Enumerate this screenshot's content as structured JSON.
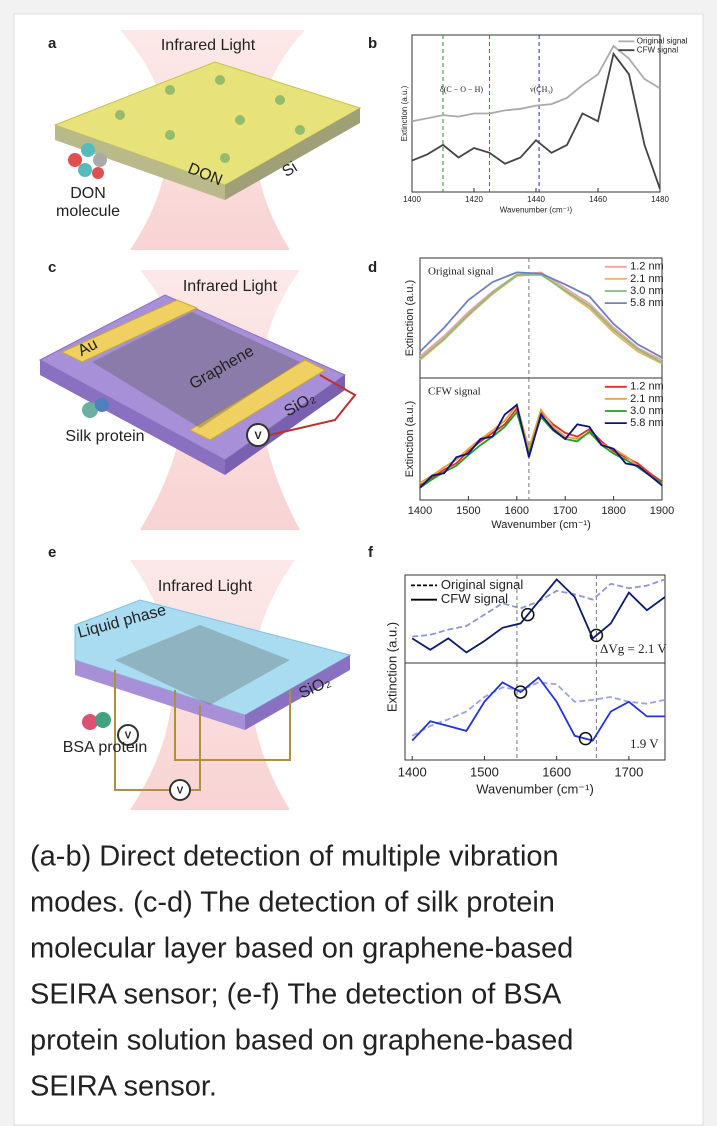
{
  "panel_labels": [
    "a",
    "b",
    "c",
    "d",
    "e",
    "f"
  ],
  "illustrations": {
    "a": {
      "light": "Infrared Light",
      "layer": "DON",
      "substrate": "Si",
      "molecule_lines": [
        "DON",
        "molecule"
      ]
    },
    "c": {
      "light": "Infrared Light",
      "electrode": "Au",
      "layer": "Graphene",
      "substrate": "SiO₂",
      "molecule": "Silk protein",
      "meter": "V"
    },
    "e": {
      "light": "Infrared Light",
      "liquid": "Liquid phase",
      "substrate": "SiO₂",
      "molecule": "BSA protein",
      "meters": [
        "V",
        "V"
      ]
    }
  },
  "chart_data": [
    {
      "type": "line",
      "xlabel": "Wavenumber (cm⁻¹)",
      "ylabel": "Extinction (a.u.)",
      "x": [
        1400,
        1405,
        1410,
        1415,
        1420,
        1425,
        1430,
        1435,
        1440,
        1445,
        1450,
        1455,
        1460,
        1465,
        1470,
        1475,
        1480
      ],
      "xlim": [
        1400,
        1480
      ],
      "ylim": [
        0,
        1
      ],
      "xticks": [
        1400,
        1420,
        1440,
        1460,
        1480
      ],
      "legend": "upper right",
      "series": [
        {
          "name": "Original signal",
          "color": "#aaaaaa",
          "values": [
            0.45,
            0.47,
            0.49,
            0.48,
            0.5,
            0.5,
            0.52,
            0.53,
            0.55,
            0.56,
            0.6,
            0.68,
            0.75,
            0.93,
            0.85,
            0.72,
            0.66
          ]
        },
        {
          "name": "CFW signal",
          "color": "#444444",
          "values": [
            0.2,
            0.24,
            0.3,
            0.22,
            0.28,
            0.25,
            0.18,
            0.22,
            0.33,
            0.25,
            0.3,
            0.5,
            0.45,
            0.88,
            0.75,
            0.3,
            0.02
          ]
        }
      ],
      "vlines": [
        {
          "x": 1410,
          "color": "#2e8b2e"
        },
        {
          "x": 1425,
          "color": "#2e8b2e"
        },
        {
          "x": 1441,
          "color": "#2233aa"
        }
      ],
      "annotations": [
        "δ(C − O − H)",
        "ν(CH₃)"
      ]
    },
    {
      "type": "line",
      "ylabel": "Extinction (a.u.)",
      "x": [
        1400,
        1450,
        1500,
        1550,
        1600,
        1650,
        1700,
        1750,
        1800,
        1850,
        1900
      ],
      "xlim": [
        1400,
        1900
      ],
      "ylim": [
        0,
        1
      ],
      "legend": "upper right",
      "series": [
        {
          "name": "1.2 nm",
          "color": "#f4a0a0",
          "values": [
            0.18,
            0.35,
            0.55,
            0.72,
            0.86,
            0.88,
            0.75,
            0.62,
            0.42,
            0.25,
            0.15
          ]
        },
        {
          "name": "2.1 nm",
          "color": "#f0b060",
          "values": [
            0.15,
            0.32,
            0.52,
            0.7,
            0.85,
            0.87,
            0.72,
            0.58,
            0.38,
            0.22,
            0.12
          ]
        },
        {
          "name": "3.0 nm",
          "color": "#80c080",
          "values": [
            0.16,
            0.33,
            0.53,
            0.71,
            0.86,
            0.86,
            0.73,
            0.6,
            0.4,
            0.24,
            0.13
          ]
        },
        {
          "name": "5.8 nm",
          "color": "#7080c0",
          "values": [
            0.22,
            0.42,
            0.65,
            0.8,
            0.88,
            0.87,
            0.78,
            0.68,
            0.45,
            0.28,
            0.17
          ]
        }
      ],
      "vlines": [
        {
          "x": 1625,
          "color": "#777777"
        }
      ],
      "annotations": [
        "Original signal"
      ]
    },
    {
      "type": "line",
      "xlabel": "Wavenumber (cm⁻¹)",
      "ylabel": "Extinction (a.u.)",
      "x": [
        1400,
        1425,
        1450,
        1475,
        1500,
        1525,
        1550,
        1575,
        1600,
        1625,
        1650,
        1675,
        1700,
        1725,
        1750,
        1775,
        1800,
        1825,
        1850,
        1875,
        1900
      ],
      "xlim": [
        1400,
        1900
      ],
      "ylim": [
        0,
        1
      ],
      "xticks": [
        1400,
        1500,
        1600,
        1700,
        1800,
        1900
      ],
      "legend": "upper right",
      "series": [
        {
          "name": "1.2 nm",
          "color": "#e03030",
          "values": [
            0.12,
            0.18,
            0.25,
            0.3,
            0.4,
            0.48,
            0.55,
            0.62,
            0.75,
            0.4,
            0.72,
            0.62,
            0.55,
            0.52,
            0.58,
            0.48,
            0.4,
            0.35,
            0.3,
            0.22,
            0.15
          ]
        },
        {
          "name": "2.1 nm",
          "color": "#e8a040",
          "values": [
            0.14,
            0.2,
            0.27,
            0.33,
            0.42,
            0.5,
            0.57,
            0.65,
            0.78,
            0.42,
            0.74,
            0.6,
            0.52,
            0.5,
            0.55,
            0.46,
            0.42,
            0.36,
            0.28,
            0.2,
            0.13
          ]
        },
        {
          "name": "3.0 nm",
          "color": "#20a020",
          "values": [
            0.1,
            0.17,
            0.23,
            0.28,
            0.37,
            0.45,
            0.52,
            0.6,
            0.72,
            0.38,
            0.68,
            0.57,
            0.5,
            0.48,
            0.56,
            0.45,
            0.38,
            0.33,
            0.27,
            0.2,
            0.14
          ]
        },
        {
          "name": "5.8 nm",
          "color": "#101080",
          "values": [
            0.1,
            0.2,
            0.22,
            0.35,
            0.38,
            0.5,
            0.52,
            0.7,
            0.78,
            0.35,
            0.7,
            0.58,
            0.5,
            0.62,
            0.6,
            0.45,
            0.42,
            0.3,
            0.28,
            0.2,
            0.12
          ]
        }
      ],
      "vlines": [
        {
          "x": 1625,
          "color": "#777777"
        }
      ],
      "annotations": [
        "CFW signal"
      ]
    },
    {
      "type": "line",
      "ylabel": "Extinction (a.u.)",
      "x": [
        1400,
        1425,
        1450,
        1475,
        1500,
        1525,
        1550,
        1575,
        1600,
        1625,
        1650,
        1675,
        1700,
        1725,
        1750
      ],
      "xlim": [
        1390,
        1750
      ],
      "ylim": [
        0,
        1
      ],
      "legend_entries": [
        {
          "name": "Original signal",
          "color": "#000000",
          "dashed": true
        },
        {
          "name": "CFW signal",
          "color": "#000000"
        }
      ],
      "series": [
        {
          "color": "#8f95d6",
          "dashed": true,
          "values": [
            0.3,
            0.32,
            0.38,
            0.42,
            0.55,
            0.68,
            0.62,
            0.7,
            0.82,
            0.78,
            0.72,
            0.9,
            0.85,
            0.88,
            0.95
          ]
        },
        {
          "color": "#0d1a6e",
          "values": [
            0.28,
            0.15,
            0.28,
            0.12,
            0.25,
            0.4,
            0.45,
            0.7,
            0.95,
            0.75,
            0.28,
            0.45,
            0.8,
            0.6,
            0.75
          ]
        }
      ],
      "vlines": [
        {
          "x": 1545,
          "color": "#777777"
        },
        {
          "x": 1655,
          "color": "#777777"
        }
      ],
      "circles": [
        1560,
        1655
      ],
      "annotations": [
        "ΔVg = 2.1 V"
      ]
    },
    {
      "type": "line",
      "xlabel": "Wavenumber (cm⁻¹)",
      "x": [
        1400,
        1425,
        1450,
        1475,
        1500,
        1525,
        1550,
        1575,
        1600,
        1625,
        1650,
        1675,
        1700,
        1725,
        1750
      ],
      "xlim": [
        1390,
        1750
      ],
      "ylim": [
        0,
        1
      ],
      "xticks": [
        1400,
        1500,
        1600,
        1700
      ],
      "series": [
        {
          "color": "#9aa2e8",
          "dashed": true,
          "values": [
            0.25,
            0.35,
            0.42,
            0.5,
            0.65,
            0.75,
            0.72,
            0.8,
            0.78,
            0.6,
            0.62,
            0.65,
            0.6,
            0.58,
            0.62
          ]
        },
        {
          "color": "#2233dd",
          "values": [
            0.2,
            0.4,
            0.35,
            0.3,
            0.6,
            0.8,
            0.7,
            0.85,
            0.6,
            0.25,
            0.2,
            0.5,
            0.6,
            0.45,
            0.45
          ]
        }
      ],
      "vlines": [
        {
          "x": 1545,
          "color": "#777777"
        },
        {
          "x": 1655,
          "color": "#777777"
        }
      ],
      "circles": [
        1550,
        1640
      ],
      "annotations": [
        "1.9 V"
      ]
    }
  ],
  "caption_lines": [
    "(a-b) Direct detection of multiple vibration",
    "modes. (c-d) The detection of silk protein",
    "molecular layer based on graphene-based",
    "SEIRA sensor; (e-f) The detection of BSA",
    "protein solution based on graphene-based",
    "SEIRA sensor."
  ]
}
